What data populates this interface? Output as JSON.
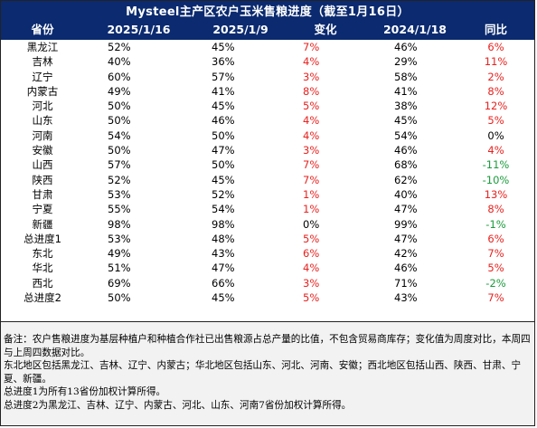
{
  "title": "Mysteel主产区农户玉米售粮进度（截至1月16日）",
  "headers": [
    "省份",
    "2025/1/16",
    "2025/1/9",
    "变化",
    "2024/1/18",
    "同比"
  ],
  "colors": {
    "header_bg": "#0b2a6f",
    "positive": "#e8221f",
    "negative": "#1a9b3b",
    "notes_bg": "#f2f2f2"
  },
  "rows": [
    {
      "province": "黑龙江",
      "d1": "52%",
      "d2": "45%",
      "change": "7%",
      "change_tone": "red",
      "d3": "46%",
      "yoy": "6%",
      "yoy_tone": "red"
    },
    {
      "province": "吉林",
      "d1": "40%",
      "d2": "36%",
      "change": "4%",
      "change_tone": "red",
      "d3": "29%",
      "yoy": "11%",
      "yoy_tone": "red"
    },
    {
      "province": "辽宁",
      "d1": "60%",
      "d2": "57%",
      "change": "3%",
      "change_tone": "red",
      "d3": "58%",
      "yoy": "2%",
      "yoy_tone": "red"
    },
    {
      "province": "内蒙古",
      "d1": "49%",
      "d2": "41%",
      "change": "8%",
      "change_tone": "red",
      "d3": "41%",
      "yoy": "8%",
      "yoy_tone": "red"
    },
    {
      "province": "河北",
      "d1": "50%",
      "d2": "45%",
      "change": "5%",
      "change_tone": "red",
      "d3": "38%",
      "yoy": "12%",
      "yoy_tone": "red"
    },
    {
      "province": "山东",
      "d1": "50%",
      "d2": "46%",
      "change": "4%",
      "change_tone": "red",
      "d3": "45%",
      "yoy": "5%",
      "yoy_tone": "red"
    },
    {
      "province": "河南",
      "d1": "54%",
      "d2": "50%",
      "change": "4%",
      "change_tone": "red",
      "d3": "54%",
      "yoy": "0%",
      "yoy_tone": "black"
    },
    {
      "province": "安徽",
      "d1": "50%",
      "d2": "47%",
      "change": "3%",
      "change_tone": "red",
      "d3": "46%",
      "yoy": "4%",
      "yoy_tone": "red"
    },
    {
      "province": "山西",
      "d1": "57%",
      "d2": "50%",
      "change": "7%",
      "change_tone": "red",
      "d3": "68%",
      "yoy": "-11%",
      "yoy_tone": "green"
    },
    {
      "province": "陕西",
      "d1": "52%",
      "d2": "45%",
      "change": "7%",
      "change_tone": "red",
      "d3": "62%",
      "yoy": "-10%",
      "yoy_tone": "green"
    },
    {
      "province": "甘肃",
      "d1": "53%",
      "d2": "52%",
      "change": "1%",
      "change_tone": "red",
      "d3": "40%",
      "yoy": "13%",
      "yoy_tone": "red"
    },
    {
      "province": "宁夏",
      "d1": "55%",
      "d2": "54%",
      "change": "1%",
      "change_tone": "red",
      "d3": "47%",
      "yoy": "8%",
      "yoy_tone": "red"
    },
    {
      "province": "新疆",
      "d1": "98%",
      "d2": "98%",
      "change": "0%",
      "change_tone": "black",
      "d3": "99%",
      "yoy": "-1%",
      "yoy_tone": "green"
    },
    {
      "province": "总进度1",
      "d1": "53%",
      "d2": "48%",
      "change": "5%",
      "change_tone": "red",
      "d3": "47%",
      "yoy": "6%",
      "yoy_tone": "red"
    },
    {
      "province": "东北",
      "d1": "49%",
      "d2": "43%",
      "change": "6%",
      "change_tone": "red",
      "d3": "42%",
      "yoy": "7%",
      "yoy_tone": "red"
    },
    {
      "province": "华北",
      "d1": "51%",
      "d2": "47%",
      "change": "4%",
      "change_tone": "red",
      "d3": "46%",
      "yoy": "5%",
      "yoy_tone": "red"
    },
    {
      "province": "西北",
      "d1": "69%",
      "d2": "66%",
      "change": "3%",
      "change_tone": "red",
      "d3": "71%",
      "yoy": "-2%",
      "yoy_tone": "green"
    },
    {
      "province": "总进度2",
      "d1": "50%",
      "d2": "45%",
      "change": "5%",
      "change_tone": "red",
      "d3": "43%",
      "yoy": "7%",
      "yoy_tone": "red"
    }
  ],
  "notes": [
    "备注：农户售粮进度为基层种植户和种植合作社已出售粮源占总产量的比值，不包含贸易商库存；变化值为周度对比，本周四与上周四数据对比。",
    "东北地区包括黑龙江、吉林、辽宁、内蒙古；华北地区包括山东、河北、河南、安徽；西北地区包括山西、陕西、甘肃、宁夏、新疆。",
    "总进度1为所有13省份加权计算所得。",
    "总进度2为黑龙江、吉林、辽宁、内蒙古、河北、山东、河南7省份加权计算所得。"
  ]
}
